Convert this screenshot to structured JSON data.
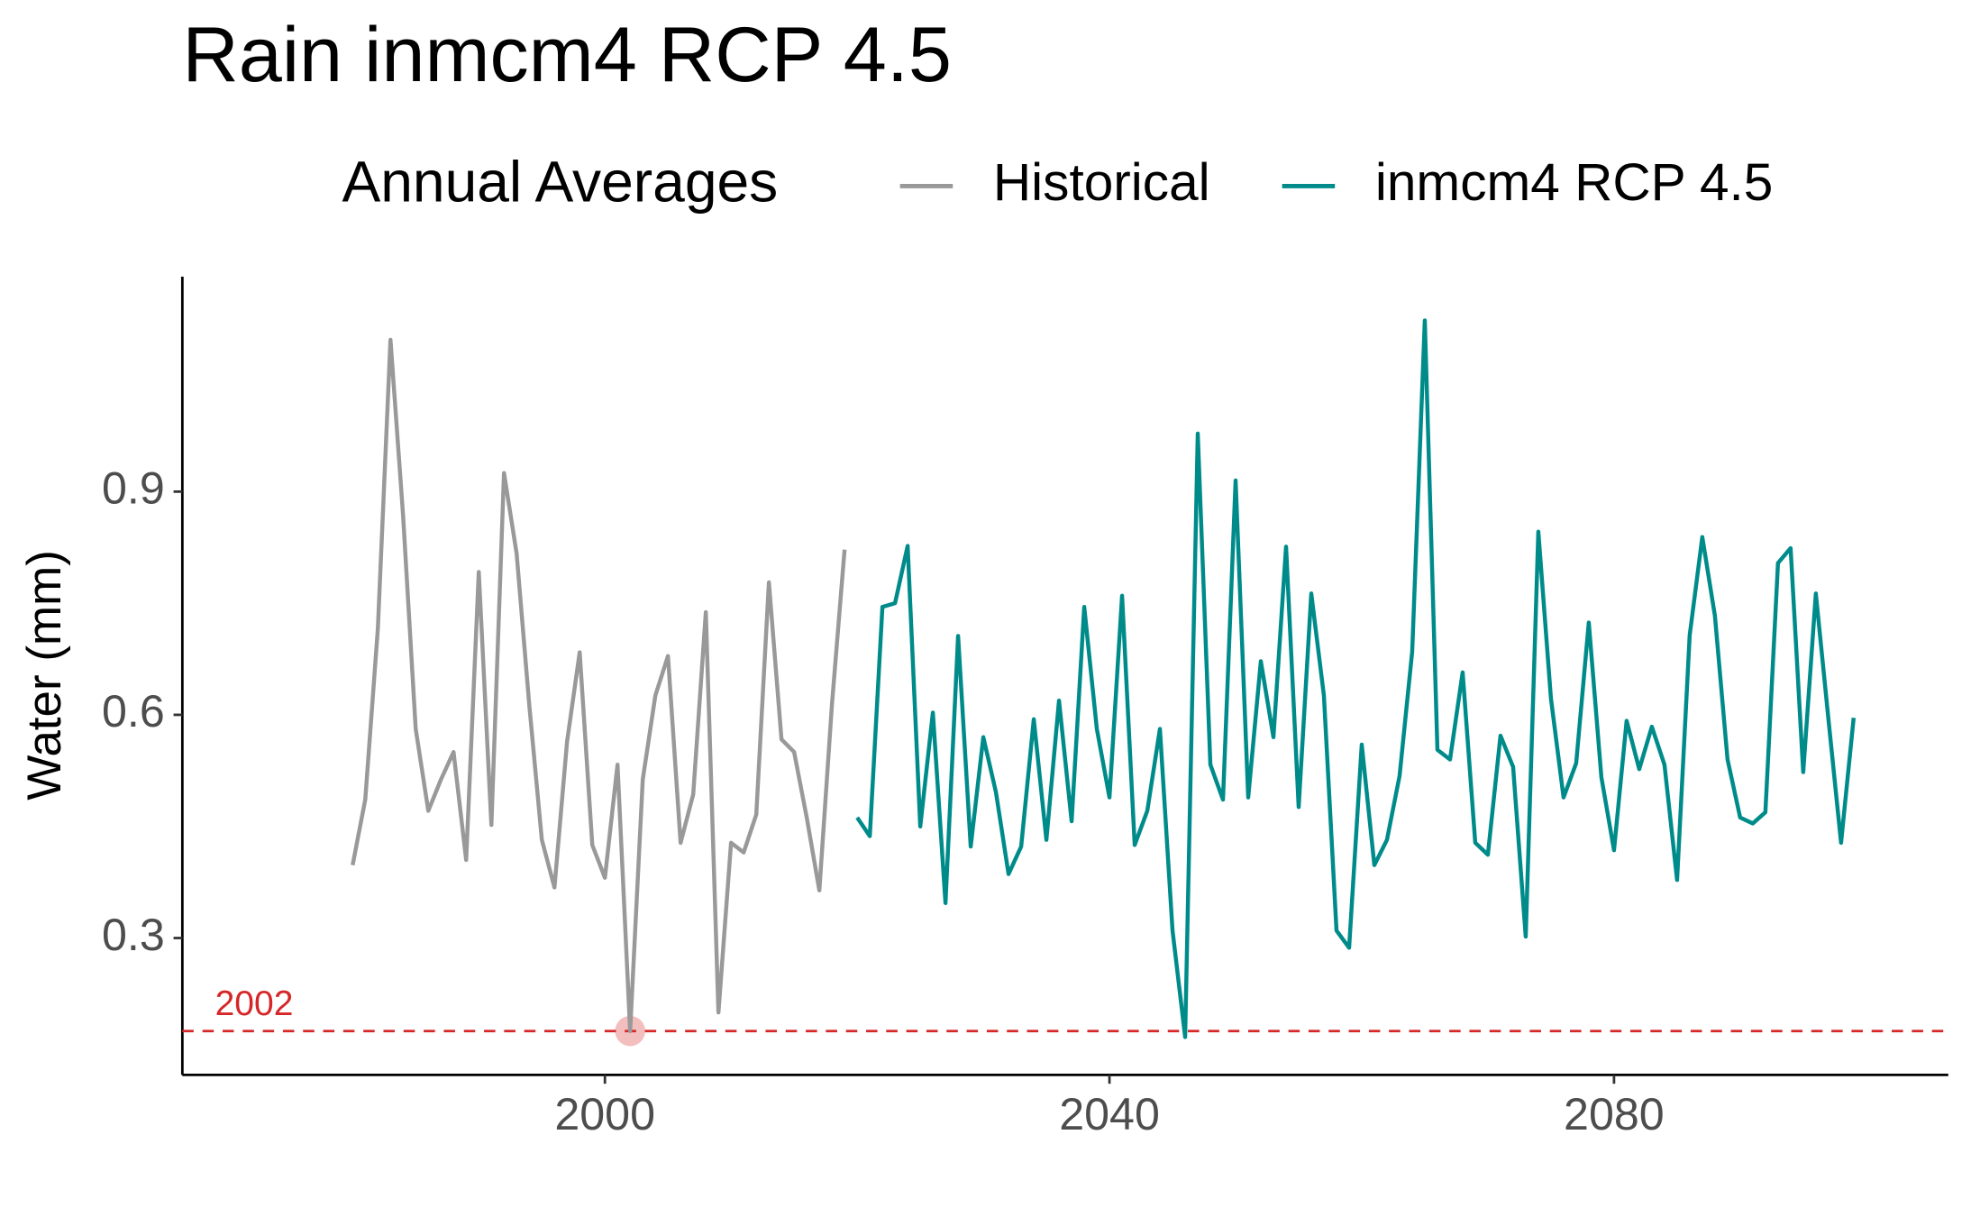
{
  "chart_data": {
    "type": "line",
    "title": "Rain inmcm4 RCP 4.5",
    "y_label": "Water (mm)",
    "legend_title": "Annual Averages",
    "legend_position": "top",
    "xlim": [
      1966.5,
      2106.5
    ],
    "xticks": [
      2000,
      2040,
      2080
    ],
    "ylim": [
      0.116,
      1.189
    ],
    "yticks": [
      0.3,
      0.6,
      0.9
    ],
    "grid": false,
    "series": [
      {
        "name": "Historical",
        "color": "#999999",
        "x": [
          1980,
          1981,
          1982,
          1983,
          1984,
          1985,
          1986,
          1987,
          1988,
          1989,
          1990,
          1991,
          1992,
          1993,
          1994,
          1995,
          1996,
          1997,
          1998,
          1999,
          2000,
          2001,
          2002,
          2003,
          2004,
          2005,
          2006,
          2007,
          2008,
          2009,
          2010,
          2011,
          2012,
          2013,
          2014,
          2015,
          2016,
          2017,
          2018,
          2019
        ],
        "values": [
          0.398,
          0.486,
          0.716,
          1.104,
          0.868,
          0.581,
          0.471,
          0.513,
          0.55,
          0.405,
          0.792,
          0.452,
          0.925,
          0.817,
          0.614,
          0.432,
          0.368,
          0.564,
          0.684,
          0.425,
          0.381,
          0.533,
          0.175,
          0.513,
          0.626,
          0.679,
          0.428,
          0.493,
          0.738,
          0.2,
          0.428,
          0.415,
          0.466,
          0.778,
          0.567,
          0.55,
          0.462,
          0.364,
          0.614,
          0.822
        ]
      },
      {
        "name": "inmcm4 RCP 4.5",
        "color": "#008b8b",
        "x": [
          2020,
          2021,
          2022,
          2023,
          2024,
          2025,
          2026,
          2027,
          2028,
          2029,
          2030,
          2031,
          2032,
          2033,
          2034,
          2035,
          2036,
          2037,
          2038,
          2039,
          2040,
          2041,
          2042,
          2043,
          2044,
          2045,
          2046,
          2047,
          2048,
          2049,
          2050,
          2051,
          2052,
          2053,
          2054,
          2055,
          2056,
          2057,
          2058,
          2059,
          2060,
          2061,
          2062,
          2063,
          2064,
          2065,
          2066,
          2067,
          2068,
          2069,
          2070,
          2071,
          2072,
          2073,
          2074,
          2075,
          2076,
          2077,
          2078,
          2079,
          2080,
          2081,
          2082,
          2083,
          2084,
          2085,
          2086,
          2087,
          2088,
          2089,
          2090,
          2091,
          2092,
          2093,
          2094,
          2095,
          2096,
          2097,
          2098,
          2099
        ],
        "values": [
          0.462,
          0.437,
          0.745,
          0.75,
          0.827,
          0.45,
          0.603,
          0.347,
          0.706,
          0.423,
          0.57,
          0.496,
          0.386,
          0.423,
          0.594,
          0.432,
          0.619,
          0.457,
          0.745,
          0.581,
          0.489,
          0.76,
          0.425,
          0.471,
          0.581,
          0.31,
          0.167,
          0.978,
          0.533,
          0.486,
          0.915,
          0.489,
          0.672,
          0.57,
          0.826,
          0.476,
          0.763,
          0.626,
          0.31,
          0.287,
          0.56,
          0.398,
          0.432,
          0.518,
          0.685,
          1.13,
          0.553,
          0.54,
          0.657,
          0.428,
          0.412,
          0.572,
          0.53,
          0.302,
          0.846,
          0.622,
          0.489,
          0.535,
          0.724,
          0.516,
          0.418,
          0.592,
          0.527,
          0.584,
          0.533,
          0.378,
          0.707,
          0.839,
          0.733,
          0.54,
          0.462,
          0.454,
          0.469,
          0.804,
          0.824,
          0.523,
          0.763,
          0.594,
          0.428,
          0.596
        ]
      }
    ],
    "annotations": [
      {
        "text": "2002",
        "x": 2002,
        "y": 0.175,
        "color": "#d62728"
      }
    ]
  }
}
